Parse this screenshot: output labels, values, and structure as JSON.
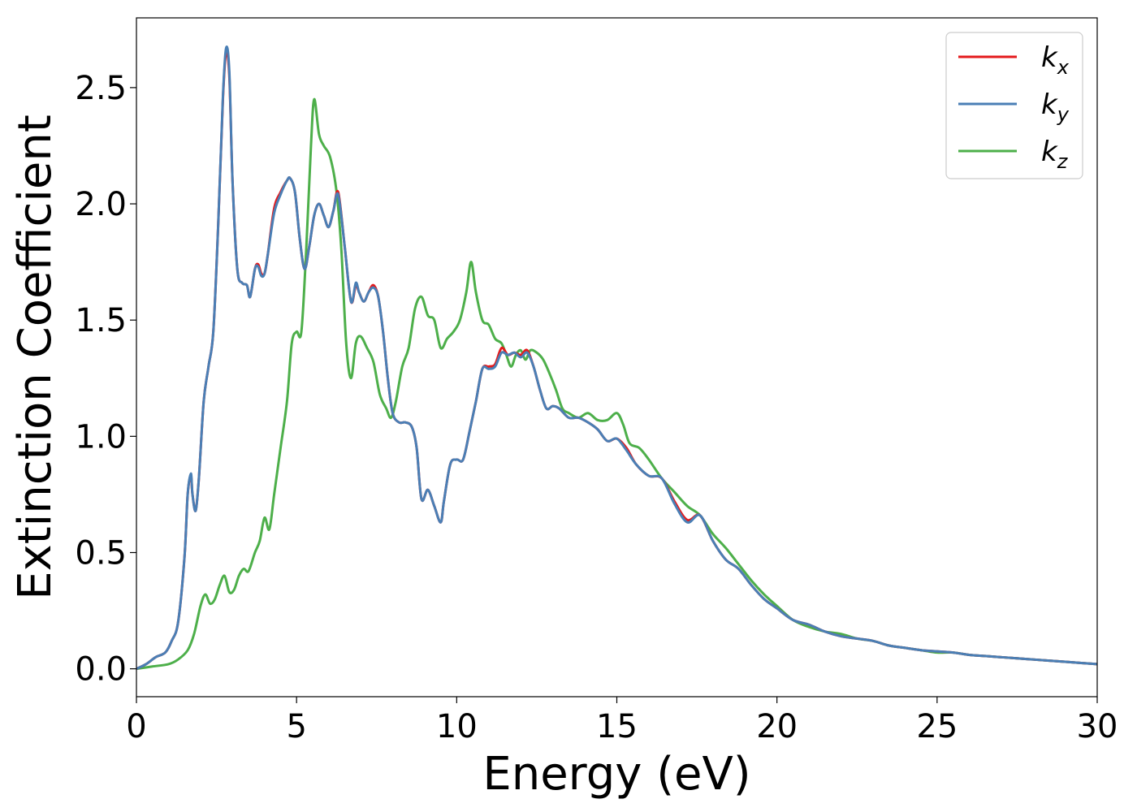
{
  "chart_data": {
    "type": "line",
    "title": "",
    "xlabel": "Energy (eV)",
    "ylabel": "Extinction Coefficient",
    "xlim": [
      0,
      30
    ],
    "ylim": [
      -0.12,
      2.8
    ],
    "xticks": [
      0,
      5,
      10,
      15,
      20,
      25,
      30
    ],
    "xtick_labels": [
      "0",
      "5",
      "10",
      "15",
      "20",
      "25",
      "30"
    ],
    "yticks": [
      0.0,
      0.5,
      1.0,
      1.5,
      2.0,
      2.5
    ],
    "ytick_labels": [
      "0.0",
      "0.5",
      "1.0",
      "1.5",
      "2.0",
      "2.5"
    ],
    "grid": false,
    "legend_position": "top-right",
    "series": [
      {
        "name": "k_x",
        "legend_base": "k",
        "legend_sub": "x",
        "color": "#e41a1c",
        "x": [
          0,
          0.3,
          0.6,
          0.9,
          1.1,
          1.3,
          1.5,
          1.6,
          1.7,
          1.75,
          1.85,
          1.95,
          2.1,
          2.25,
          2.4,
          2.55,
          2.7,
          2.8,
          2.9,
          3.0,
          3.15,
          3.3,
          3.45,
          3.55,
          3.7,
          3.8,
          3.9,
          4.0,
          4.1,
          4.3,
          4.5,
          4.7,
          4.8,
          4.95,
          5.1,
          5.25,
          5.4,
          5.55,
          5.7,
          5.85,
          6.0,
          6.15,
          6.3,
          6.5,
          6.7,
          6.85,
          6.95,
          7.1,
          7.25,
          7.4,
          7.55,
          7.7,
          7.85,
          8.0,
          8.2,
          8.4,
          8.6,
          8.75,
          8.9,
          9.1,
          9.3,
          9.5,
          9.6,
          9.8,
          10.0,
          10.2,
          10.4,
          10.6,
          10.8,
          11.0,
          11.2,
          11.4,
          11.6,
          11.8,
          12.0,
          12.2,
          12.4,
          12.6,
          12.8,
          13.0,
          13.2,
          13.5,
          13.8,
          14.1,
          14.4,
          14.7,
          15.0,
          15.3,
          15.6,
          16.0,
          16.4,
          16.8,
          17.2,
          17.6,
          18.0,
          18.4,
          18.8,
          19.2,
          19.6,
          20.0,
          20.5,
          21.0,
          21.5,
          22.0,
          22.5,
          23.0,
          23.5,
          24.0,
          24.5,
          25.0,
          25.5,
          26.0,
          26.5,
          27.0,
          27.5,
          28.0,
          28.5,
          29.0,
          29.5,
          30.0
        ],
        "y": [
          0.0,
          0.02,
          0.05,
          0.07,
          0.12,
          0.2,
          0.48,
          0.75,
          0.83,
          0.75,
          0.68,
          0.82,
          1.15,
          1.3,
          1.45,
          1.9,
          2.45,
          2.65,
          2.55,
          2.1,
          1.72,
          1.66,
          1.65,
          1.6,
          1.72,
          1.74,
          1.7,
          1.7,
          1.78,
          1.98,
          2.05,
          2.1,
          2.11,
          2.05,
          1.85,
          1.72,
          1.82,
          1.95,
          2.0,
          1.95,
          1.9,
          1.97,
          2.05,
          1.82,
          1.58,
          1.65,
          1.62,
          1.58,
          1.62,
          1.65,
          1.6,
          1.45,
          1.25,
          1.1,
          1.06,
          1.06,
          1.04,
          0.95,
          0.73,
          0.77,
          0.7,
          0.63,
          0.72,
          0.88,
          0.9,
          0.9,
          1.02,
          1.15,
          1.29,
          1.3,
          1.31,
          1.38,
          1.35,
          1.36,
          1.35,
          1.37,
          1.3,
          1.2,
          1.12,
          1.13,
          1.12,
          1.08,
          1.08,
          1.06,
          1.03,
          0.98,
          0.99,
          0.95,
          0.88,
          0.83,
          0.82,
          0.72,
          0.64,
          0.66,
          0.55,
          0.47,
          0.43,
          0.36,
          0.3,
          0.26,
          0.21,
          0.19,
          0.16,
          0.14,
          0.13,
          0.12,
          0.1,
          0.09,
          0.08,
          0.075,
          0.07,
          0.06,
          0.055,
          0.05,
          0.045,
          0.04,
          0.035,
          0.03,
          0.025,
          0.02
        ]
      },
      {
        "name": "k_y",
        "legend_base": "k",
        "legend_sub": "y",
        "color": "#4a7fb5",
        "x": [
          0,
          0.3,
          0.6,
          0.9,
          1.1,
          1.3,
          1.5,
          1.6,
          1.7,
          1.75,
          1.85,
          1.95,
          2.1,
          2.25,
          2.4,
          2.55,
          2.7,
          2.8,
          2.9,
          3.0,
          3.15,
          3.3,
          3.45,
          3.55,
          3.7,
          3.8,
          3.9,
          4.0,
          4.1,
          4.3,
          4.5,
          4.7,
          4.8,
          4.95,
          5.1,
          5.25,
          5.4,
          5.55,
          5.7,
          5.85,
          6.0,
          6.15,
          6.3,
          6.5,
          6.7,
          6.85,
          6.95,
          7.1,
          7.25,
          7.4,
          7.55,
          7.7,
          7.85,
          8.0,
          8.2,
          8.4,
          8.6,
          8.75,
          8.9,
          9.1,
          9.3,
          9.5,
          9.6,
          9.8,
          10.0,
          10.2,
          10.4,
          10.6,
          10.8,
          11.0,
          11.2,
          11.4,
          11.6,
          11.8,
          12.0,
          12.2,
          12.4,
          12.6,
          12.8,
          13.0,
          13.2,
          13.5,
          13.8,
          14.1,
          14.4,
          14.7,
          15.0,
          15.3,
          15.6,
          16.0,
          16.4,
          16.8,
          17.2,
          17.6,
          18.0,
          18.4,
          18.8,
          19.2,
          19.6,
          20.0,
          20.5,
          21.0,
          21.5,
          22.0,
          22.5,
          23.0,
          23.5,
          24.0,
          24.5,
          25.0,
          25.5,
          26.0,
          26.5,
          27.0,
          27.5,
          28.0,
          28.5,
          29.0,
          29.5,
          30.0
        ],
        "y": [
          0.0,
          0.02,
          0.05,
          0.07,
          0.12,
          0.2,
          0.48,
          0.75,
          0.84,
          0.75,
          0.68,
          0.82,
          1.15,
          1.3,
          1.45,
          1.9,
          2.46,
          2.67,
          2.57,
          2.1,
          1.72,
          1.66,
          1.65,
          1.6,
          1.72,
          1.73,
          1.69,
          1.7,
          1.78,
          1.96,
          2.04,
          2.1,
          2.11,
          2.05,
          1.85,
          1.72,
          1.82,
          1.95,
          2.0,
          1.95,
          1.9,
          1.97,
          2.04,
          1.82,
          1.58,
          1.66,
          1.62,
          1.58,
          1.62,
          1.64,
          1.6,
          1.45,
          1.25,
          1.1,
          1.06,
          1.06,
          1.04,
          0.95,
          0.73,
          0.77,
          0.7,
          0.63,
          0.72,
          0.88,
          0.9,
          0.9,
          1.02,
          1.15,
          1.29,
          1.29,
          1.3,
          1.36,
          1.35,
          1.36,
          1.34,
          1.36,
          1.3,
          1.2,
          1.12,
          1.13,
          1.12,
          1.08,
          1.08,
          1.06,
          1.03,
          0.98,
          0.99,
          0.94,
          0.88,
          0.83,
          0.82,
          0.71,
          0.63,
          0.66,
          0.55,
          0.47,
          0.43,
          0.36,
          0.3,
          0.26,
          0.21,
          0.19,
          0.16,
          0.14,
          0.13,
          0.12,
          0.1,
          0.09,
          0.08,
          0.075,
          0.07,
          0.06,
          0.055,
          0.05,
          0.045,
          0.04,
          0.035,
          0.03,
          0.025,
          0.02
        ]
      },
      {
        "name": "k_z",
        "legend_base": "k",
        "legend_sub": "z",
        "color": "#4daf4a",
        "x": [
          0,
          0.5,
          1.0,
          1.3,
          1.6,
          1.8,
          2.0,
          2.15,
          2.3,
          2.45,
          2.6,
          2.75,
          2.9,
          3.05,
          3.2,
          3.35,
          3.5,
          3.7,
          3.85,
          4.0,
          4.15,
          4.3,
          4.5,
          4.7,
          4.85,
          5.0,
          5.15,
          5.3,
          5.45,
          5.55,
          5.7,
          5.85,
          6.05,
          6.25,
          6.4,
          6.55,
          6.7,
          6.85,
          7.0,
          7.2,
          7.4,
          7.6,
          7.8,
          7.95,
          8.1,
          8.3,
          8.5,
          8.7,
          8.9,
          9.1,
          9.3,
          9.5,
          9.7,
          9.9,
          10.1,
          10.3,
          10.45,
          10.6,
          10.8,
          11.0,
          11.2,
          11.4,
          11.55,
          11.7,
          11.85,
          12.0,
          12.15,
          12.3,
          12.5,
          12.7,
          12.9,
          13.1,
          13.3,
          13.5,
          13.8,
          14.1,
          14.4,
          14.7,
          15.0,
          15.2,
          15.4,
          15.7,
          16.0,
          16.4,
          16.8,
          17.2,
          17.6,
          18.0,
          18.4,
          18.8,
          19.2,
          19.6,
          20.0,
          20.5,
          21.0,
          21.5,
          22.0,
          22.5,
          23.0,
          23.5,
          24.0,
          24.5,
          25.0,
          25.5,
          26.0,
          26.5,
          27.0,
          27.5,
          28.0,
          28.5,
          29.0,
          29.5,
          30.0
        ],
        "y": [
          0.0,
          0.01,
          0.02,
          0.04,
          0.08,
          0.15,
          0.27,
          0.32,
          0.28,
          0.3,
          0.36,
          0.4,
          0.33,
          0.34,
          0.4,
          0.43,
          0.42,
          0.5,
          0.55,
          0.65,
          0.6,
          0.75,
          0.95,
          1.15,
          1.4,
          1.45,
          1.45,
          1.8,
          2.25,
          2.45,
          2.3,
          2.25,
          2.2,
          2.05,
          1.8,
          1.4,
          1.25,
          1.4,
          1.43,
          1.38,
          1.32,
          1.18,
          1.12,
          1.08,
          1.15,
          1.3,
          1.38,
          1.55,
          1.6,
          1.52,
          1.5,
          1.38,
          1.42,
          1.45,
          1.5,
          1.62,
          1.75,
          1.62,
          1.5,
          1.48,
          1.42,
          1.4,
          1.35,
          1.3,
          1.35,
          1.37,
          1.33,
          1.37,
          1.36,
          1.33,
          1.27,
          1.2,
          1.12,
          1.1,
          1.08,
          1.1,
          1.07,
          1.07,
          1.1,
          1.05,
          0.97,
          0.95,
          0.9,
          0.82,
          0.76,
          0.7,
          0.66,
          0.58,
          0.52,
          0.45,
          0.38,
          0.32,
          0.27,
          0.21,
          0.18,
          0.16,
          0.15,
          0.13,
          0.12,
          0.1,
          0.09,
          0.08,
          0.07,
          0.07,
          0.06,
          0.055,
          0.05,
          0.045,
          0.04,
          0.035,
          0.03,
          0.025,
          0.02
        ]
      }
    ]
  }
}
